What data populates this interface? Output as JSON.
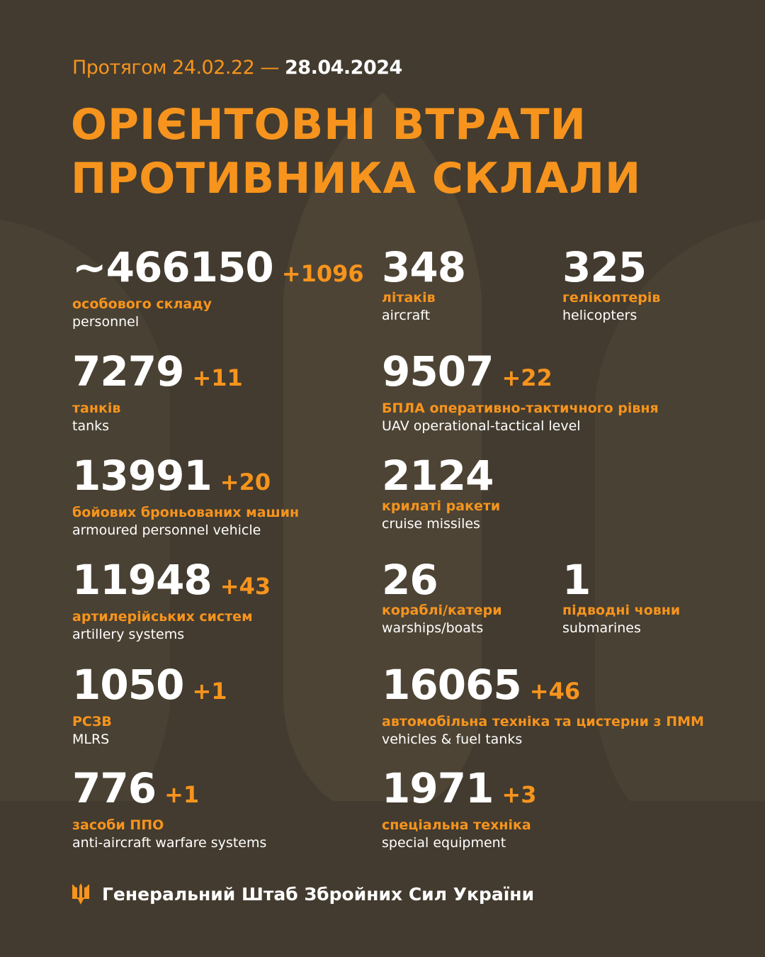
{
  "header": {
    "period_prefix": "Протягом 24.02.22 — ",
    "period_end": "28.04.2024",
    "title_line1": "ОРІЄНТОВНІ ВТРАТИ",
    "title_line2": "ПРОТИВНИКА СКЛАЛИ"
  },
  "stats": [
    {
      "value": "~466150",
      "delta": "+1096",
      "ua": "особового складу",
      "en": "personnel"
    },
    {
      "value": "348",
      "delta": "",
      "ua": "літаків",
      "en": "aircraft"
    },
    {
      "value": "325",
      "delta": "",
      "ua": "гелікоптерів",
      "en": "helicopters"
    },
    {
      "value": "7279",
      "delta": "+11",
      "ua": "танків",
      "en": "tanks"
    },
    {
      "value": "9507",
      "delta": "+22",
      "ua": "БПЛА оперативно-тактичного рівня",
      "en": "UAV operational-tactical level"
    },
    {
      "value": "13991",
      "delta": "+20",
      "ua": "бойових броньованих машин",
      "en": "armoured personnel vehicle"
    },
    {
      "value": "2124",
      "delta": "",
      "ua": "крилаті ракети",
      "en": "cruise missiles"
    },
    {
      "value": "11948",
      "delta": "+43",
      "ua": "артилерійських систем",
      "en": "artillery systems"
    },
    {
      "value": "26",
      "delta": "",
      "ua": "кораблі/катери",
      "en": "warships/boats"
    },
    {
      "value": "1",
      "delta": "",
      "ua": "підводні човни",
      "en": "submarines"
    },
    {
      "value": "1050",
      "delta": "+1",
      "ua": "РСЗВ",
      "en": "MLRS"
    },
    {
      "value": "16065",
      "delta": "+46",
      "ua": "автомобільна техніка та цистерни з ПММ",
      "en": "vehicles & fuel tanks"
    },
    {
      "value": "776",
      "delta": "+1",
      "ua": "засоби ППО",
      "en": "anti-aircraft warfare systems"
    },
    {
      "value": "1971",
      "delta": "+3",
      "ua": "спеціальна техніка",
      "en": "special equipment"
    }
  ],
  "footer": {
    "text": "Генеральний Штаб Збройних Сил України",
    "icon": "trident-icon"
  },
  "colors": {
    "background": "#433b2f",
    "accent": "#f7941d",
    "text": "#ffffff",
    "watermark": "#4d4435"
  }
}
